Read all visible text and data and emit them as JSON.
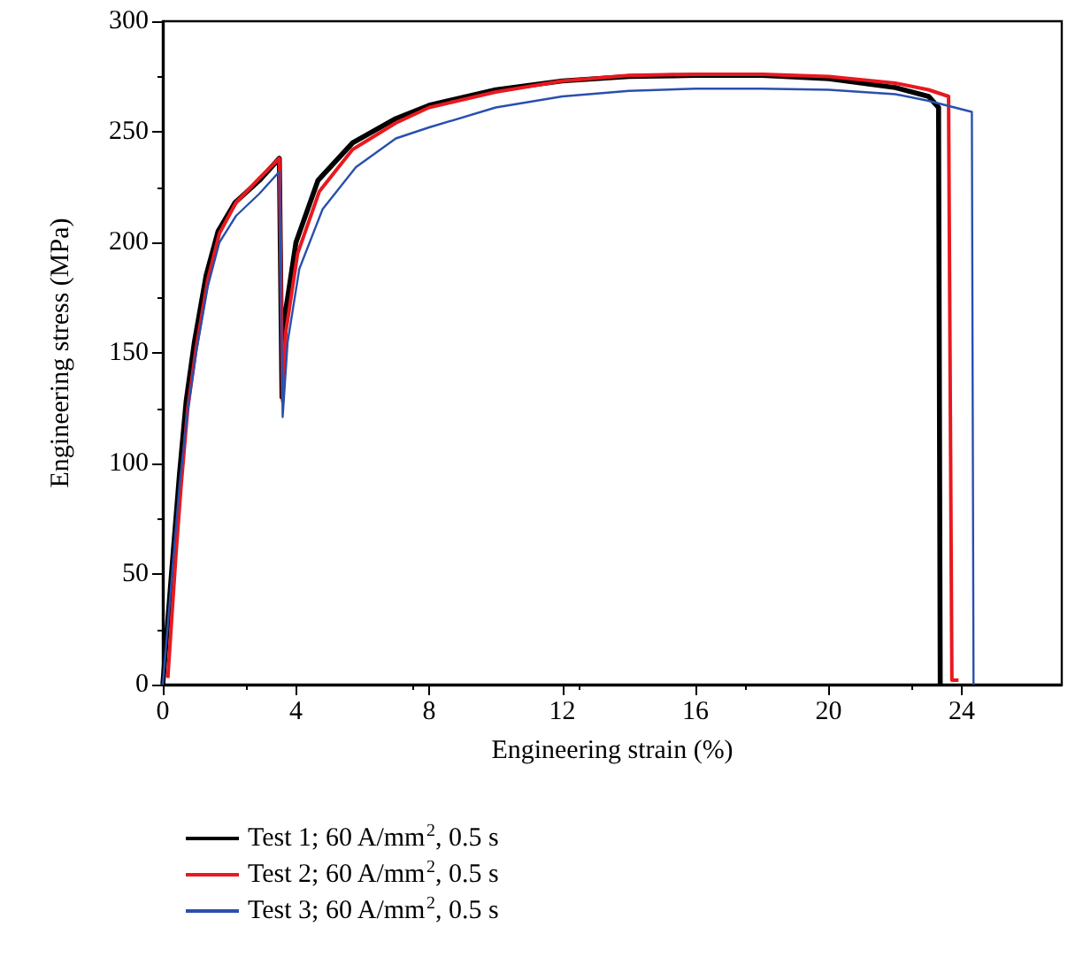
{
  "chart_data": {
    "type": "line",
    "xlabel": "Engineering strain (%)",
    "ylabel": "Engineering stress (MPa)",
    "xlim": [
      0,
      27
    ],
    "xticks": [
      0,
      4,
      8,
      12,
      16,
      20,
      24
    ],
    "ylim": [
      0,
      300
    ],
    "yticks": [
      0,
      50,
      100,
      150,
      200,
      250,
      300
    ],
    "grid": false,
    "legend": "bottom",
    "marker": "none",
    "line_style": "solid",
    "series": [
      {
        "name": "Test 1; 60 A/mm$^{2}$, 0.5 s",
        "color": "#000000",
        "x": [
          0,
          0.25,
          0.5,
          0.7,
          0.95,
          1.3,
          1.66,
          2.17,
          2.9,
          3.5,
          3.58,
          3.65,
          4.0,
          4.66,
          5.7,
          7,
          8,
          10,
          12,
          14,
          16,
          18,
          20,
          22,
          23,
          23.3,
          23.35
        ],
        "values": [
          0,
          48,
          95,
          128,
          155,
          185,
          205,
          218,
          228,
          238,
          130,
          165,
          200,
          228,
          245,
          256,
          262,
          269,
          273,
          275,
          275.5,
          275.5,
          274,
          270,
          266,
          261,
          0
        ]
      },
      {
        "name": "Test 2; 60 A/mm$^{2}$, 0.5 s",
        "color": "#e8191f",
        "x": [
          0.15,
          0.4,
          0.55,
          0.75,
          1.0,
          1.35,
          1.7,
          2.2,
          2.9,
          3.5,
          3.6,
          3.7,
          4.05,
          4.7,
          5.7,
          7,
          8,
          10,
          12,
          14,
          16,
          18,
          20,
          22,
          23,
          23.6,
          23.7,
          23.9
        ],
        "values": [
          3,
          60,
          90,
          125,
          152,
          183,
          204,
          218,
          229,
          238,
          128,
          160,
          195,
          223,
          242,
          254,
          261,
          268,
          273,
          275.5,
          276,
          276,
          275,
          272,
          269,
          266,
          2,
          2
        ]
      },
      {
        "name": "Test 3; 60 A/mm$^{2}$, 0.5 s",
        "color": "#2a4fae",
        "x": [
          0,
          0.25,
          0.5,
          0.75,
          1.0,
          1.35,
          1.7,
          2.2,
          2.9,
          3.5,
          3.6,
          3.75,
          4.1,
          4.8,
          5.8,
          7,
          8,
          10,
          12,
          14,
          16,
          18,
          20,
          22,
          23,
          24.3,
          24.35
        ],
        "values": [
          0,
          45,
          90,
          124,
          150,
          180,
          200,
          212,
          222,
          232,
          121,
          155,
          188,
          215,
          234,
          247,
          252,
          261,
          266,
          268.5,
          269.5,
          269.5,
          269,
          267,
          264,
          259,
          0
        ]
      }
    ]
  }
}
